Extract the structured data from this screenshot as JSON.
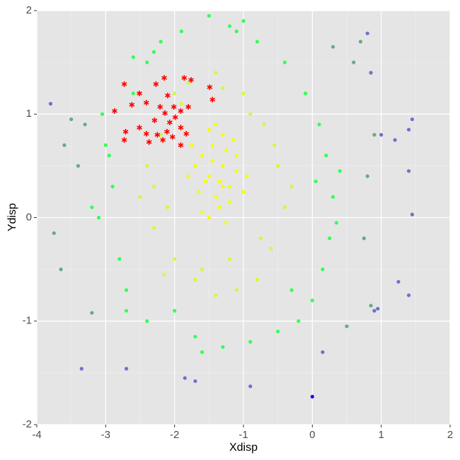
{
  "chart_data": {
    "type": "scatter",
    "x_label": "Xdisp",
    "y_label": "Ydisp",
    "xlim": [
      -4,
      2
    ],
    "ylim": [
      -2,
      2
    ],
    "xticks": [
      -4,
      -3,
      -2,
      -1,
      0,
      1,
      2
    ],
    "yticks": [
      -2,
      -1,
      0,
      1,
      2
    ],
    "grid": true,
    "background": "#e5e5e5",
    "series": [
      {
        "color": "#33ff55",
        "marker": "circle",
        "x": [
          -3.0,
          -2.9,
          -3.1,
          -2.8,
          -2.7,
          -3.05,
          -2.6,
          -2.4,
          -2.2,
          -1.9,
          -1.5,
          -1.1,
          -0.8,
          -0.4,
          -0.1,
          0.1,
          0.2,
          0.3,
          0.25,
          0.15,
          0.0,
          -0.2,
          -0.5,
          -0.9,
          -1.3,
          -1.7,
          -2.0,
          -2.4,
          -2.7,
          -2.95,
          0.35,
          0.05,
          -1.6,
          -1.0,
          -2.6,
          -3.2,
          0.4,
          -0.3,
          -2.3,
          -1.2
        ],
        "values": [
          0.7,
          0.3,
          0.0,
          -0.4,
          -0.7,
          1.0,
          1.2,
          1.5,
          1.7,
          1.8,
          1.95,
          1.8,
          1.7,
          1.5,
          1.2,
          0.9,
          0.6,
          0.2,
          -0.2,
          -0.5,
          -0.8,
          -1.0,
          -1.1,
          -1.2,
          -1.25,
          -1.15,
          -0.9,
          -1.0,
          -0.9,
          0.6,
          -0.05,
          0.35,
          -1.3,
          1.9,
          1.55,
          0.1,
          0.45,
          -0.7,
          1.6,
          1.85
        ]
      },
      {
        "color": "#ccff33",
        "marker": "circle",
        "x": [
          -2.3,
          -2.2,
          -2.0,
          -1.8,
          -1.4,
          -1.0,
          -0.7,
          -0.5,
          -0.4,
          -0.6,
          -0.8,
          -1.1,
          -1.4,
          -1.7,
          -2.0,
          -2.3,
          -2.4,
          -2.1,
          -0.9,
          -0.55,
          -1.6,
          -1.2,
          -2.5,
          -0.3,
          -1.9,
          -0.75,
          -1.3,
          -2.15
        ],
        "values": [
          0.3,
          0.8,
          1.2,
          1.3,
          1.4,
          1.2,
          0.9,
          0.5,
          0.1,
          -0.3,
          -0.6,
          -0.7,
          -0.75,
          -0.6,
          -0.4,
          -0.1,
          0.5,
          0.1,
          1.0,
          0.7,
          -0.5,
          -0.4,
          0.2,
          0.3,
          1.1,
          -0.2,
          1.25,
          -0.55
        ]
      },
      {
        "color": "#f5ff00",
        "marker": "circle",
        "x": [
          -1.5,
          -1.3,
          -1.4,
          -1.2,
          -1.6,
          -1.1,
          -1.45,
          -1.35,
          -1.25,
          -1.55,
          -1.7,
          -1.0,
          -1.3,
          -1.5,
          -1.2,
          -1.65,
          -1.4,
          -1.1,
          -1.8,
          -1.35,
          -1.6,
          -1.25,
          -1.45,
          -1.15,
          -1.5,
          -0.95,
          -1.75,
          -1.3
        ],
        "values": [
          0.4,
          0.5,
          0.2,
          0.3,
          0.6,
          0.45,
          0.7,
          0.1,
          0.65,
          0.35,
          0.5,
          0.25,
          0.8,
          0.0,
          0.15,
          0.25,
          0.9,
          0.6,
          0.4,
          0.35,
          0.05,
          -0.05,
          0.55,
          0.75,
          0.85,
          0.4,
          0.7,
          0.3
        ]
      },
      {
        "color": "#66aa88",
        "marker": "circle",
        "x": [
          -3.5,
          -3.6,
          -3.3,
          -3.75,
          -3.65,
          0.6,
          0.7,
          0.8,
          0.9,
          0.75,
          0.85,
          0.5,
          0.3,
          -3.4,
          -3.2
        ],
        "values": [
          0.95,
          0.7,
          0.9,
          -0.15,
          -0.5,
          1.5,
          1.7,
          0.4,
          0.8,
          -0.2,
          -0.85,
          -1.05,
          1.65,
          0.5,
          -0.92
        ]
      },
      {
        "color": "#7070cc",
        "marker": "circle",
        "x": [
          -3.8,
          0.8,
          0.85,
          1.0,
          1.2,
          1.4,
          1.45,
          1.4,
          1.45,
          1.25,
          1.4,
          0.95,
          -1.85,
          -1.7,
          -0.9,
          -2.7,
          -3.35,
          0.15,
          0.9
        ],
        "values": [
          1.1,
          1.78,
          1.4,
          0.8,
          0.75,
          0.85,
          0.95,
          0.45,
          0.03,
          -0.62,
          -0.75,
          -0.88,
          -1.55,
          -1.58,
          -1.63,
          -1.46,
          -1.46,
          -1.3,
          -0.9
        ]
      },
      {
        "color": "#2a00ee",
        "marker": "circle",
        "x": [
          0.0
        ],
        "values": [
          -1.73
        ]
      },
      {
        "color": "#ff0000",
        "marker": "star",
        "x": [
          -2.73,
          -2.51,
          -2.27,
          -2.15,
          -1.86,
          -1.76,
          -1.49,
          -1.45,
          -2.87,
          -2.62,
          -2.41,
          -2.21,
          -2.1,
          -2.01,
          -1.91,
          -1.8,
          -2.14,
          -1.99,
          -2.71,
          -2.51,
          -2.41,
          -2.25,
          -2.11,
          -2.03,
          -1.91,
          -1.83,
          -2.73,
          -2.37,
          -2.17,
          -1.91,
          -2.07,
          -2.29
        ],
        "values": [
          1.29,
          1.2,
          1.29,
          1.35,
          1.35,
          1.33,
          1.26,
          1.14,
          1.03,
          1.09,
          1.11,
          1.07,
          1.18,
          1.07,
          1.03,
          1.07,
          1.01,
          0.97,
          0.83,
          0.87,
          0.81,
          0.8,
          0.83,
          0.78,
          0.87,
          0.81,
          0.75,
          0.73,
          0.75,
          0.7,
          0.92,
          0.94
        ]
      }
    ]
  }
}
